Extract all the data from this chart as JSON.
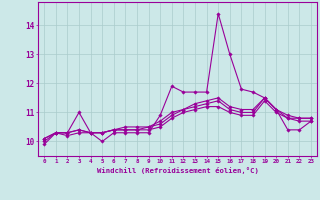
{
  "x": [
    0,
    1,
    2,
    3,
    4,
    5,
    6,
    7,
    8,
    9,
    10,
    11,
    12,
    13,
    14,
    15,
    16,
    17,
    18,
    19,
    20,
    21,
    22,
    23
  ],
  "line1": [
    9.9,
    10.3,
    10.3,
    11.0,
    10.3,
    10.0,
    10.3,
    10.3,
    10.3,
    10.3,
    10.9,
    11.9,
    11.7,
    11.7,
    11.7,
    14.4,
    13.0,
    11.8,
    11.7,
    11.5,
    11.1,
    10.4,
    10.4,
    10.7
  ],
  "line2": [
    10.1,
    10.3,
    10.2,
    10.3,
    10.3,
    10.3,
    10.4,
    10.4,
    10.4,
    10.4,
    10.5,
    10.8,
    11.0,
    11.1,
    11.2,
    11.2,
    11.0,
    10.9,
    10.9,
    11.4,
    11.0,
    10.8,
    10.7,
    10.7
  ],
  "line3": [
    10.1,
    10.3,
    10.3,
    10.4,
    10.3,
    10.3,
    10.4,
    10.4,
    10.4,
    10.5,
    10.6,
    10.9,
    11.1,
    11.2,
    11.3,
    11.4,
    11.1,
    11.0,
    11.0,
    11.5,
    11.1,
    10.9,
    10.8,
    10.8
  ],
  "line4": [
    10.0,
    10.3,
    10.3,
    10.4,
    10.3,
    10.3,
    10.4,
    10.5,
    10.5,
    10.5,
    10.7,
    11.0,
    11.1,
    11.3,
    11.4,
    11.5,
    11.2,
    11.1,
    11.1,
    11.5,
    11.1,
    10.8,
    10.8,
    10.8
  ],
  "line_color": "#990099",
  "bg_color": "#cce8e8",
  "grid_color": "#aacccc",
  "ylabel_ticks": [
    10,
    11,
    12,
    13,
    14
  ],
  "ylim": [
    9.5,
    14.8
  ],
  "xlim": [
    -0.5,
    23.5
  ],
  "xlabel": "Windchill (Refroidissement éolien,°C)"
}
